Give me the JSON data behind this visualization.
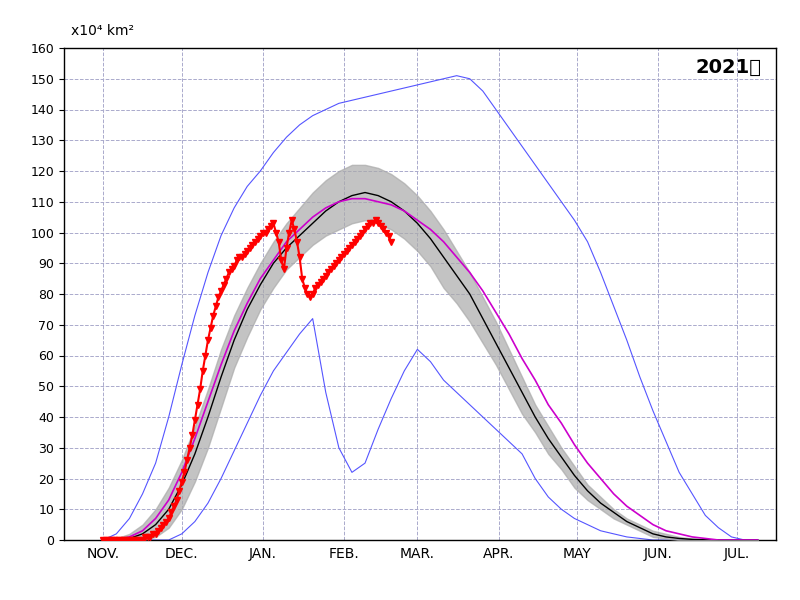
{
  "title": "2021年",
  "ylabel": "x10⁴ km²",
  "ylim": [
    0,
    160
  ],
  "yticks": [
    0,
    10,
    20,
    30,
    40,
    50,
    60,
    70,
    80,
    90,
    100,
    110,
    120,
    130,
    140,
    150,
    160
  ],
  "month_labels": [
    "NOV.",
    "DEC.",
    "JAN.",
    "FEB.",
    "MAR.",
    "APR.",
    "MAY",
    "JUN.",
    "JUL."
  ],
  "month_positions": [
    0,
    30,
    61,
    92,
    120,
    151,
    181,
    212,
    242
  ],
  "xlim": [
    -15,
    257
  ],
  "background_color": "#ffffff",
  "grid_color": "#aaaacc",
  "mean_color": "#000000",
  "envelope_color": "#888888",
  "max_color": "#5555ff",
  "purple_color": "#cc00cc",
  "red_color": "#ff0000",
  "red_data": {
    "x": [
      0,
      1,
      2,
      3,
      4,
      5,
      6,
      7,
      8,
      9,
      10,
      11,
      12,
      13,
      14,
      15,
      16,
      17,
      18,
      19,
      20,
      21,
      22,
      23,
      24,
      25,
      26,
      27,
      28,
      29,
      30,
      31,
      32,
      33,
      34,
      35,
      36,
      37,
      38,
      39,
      40,
      41,
      42,
      43,
      44,
      45,
      46,
      47,
      48,
      49,
      50,
      51,
      52,
      53,
      54,
      55,
      56,
      57,
      58,
      59,
      60,
      61,
      62,
      63,
      64,
      65,
      66,
      67,
      68,
      69,
      70,
      71,
      72,
      73,
      74,
      75,
      76,
      77,
      78,
      79,
      80,
      81,
      82,
      83,
      84,
      85,
      86,
      87,
      88,
      89,
      90,
      91,
      92,
      93,
      94,
      95,
      96,
      97,
      98,
      99,
      100,
      101,
      102,
      103,
      104,
      105,
      106,
      107,
      108,
      109,
      110
    ],
    "y_raw": [
      0,
      0,
      0,
      0,
      0,
      0,
      0,
      0,
      0,
      0,
      0,
      0,
      0,
      0,
      0,
      0,
      1,
      1,
      1,
      2,
      2,
      3,
      4,
      5,
      6,
      7,
      9,
      11,
      13,
      16,
      19,
      22,
      26,
      30,
      34,
      39,
      44,
      49,
      55,
      60,
      65,
      69,
      73,
      76,
      79,
      81,
      83,
      85,
      87,
      88,
      89,
      91,
      92,
      92,
      93,
      94,
      95,
      96,
      97,
      98,
      99,
      100,
      100,
      101,
      102,
      103,
      100,
      97,
      91,
      88,
      95,
      100,
      104,
      101,
      97,
      92,
      85,
      82,
      80,
      79,
      80,
      82,
      83,
      84,
      85,
      86,
      87,
      88,
      89,
      90,
      91,
      92,
      93,
      94,
      95,
      96,
      97,
      98,
      99,
      100,
      101,
      102,
      103,
      103,
      104,
      103,
      102,
      101,
      100,
      99,
      97
    ]
  },
  "mean_data": {
    "x": [
      0,
      5,
      10,
      15,
      20,
      25,
      30,
      35,
      40,
      45,
      50,
      55,
      60,
      65,
      70,
      75,
      80,
      85,
      90,
      95,
      100,
      105,
      110,
      115,
      120,
      125,
      130,
      135,
      140,
      145,
      150,
      155,
      160,
      165,
      170,
      175,
      180,
      185,
      190,
      195,
      200,
      205,
      210,
      215,
      220,
      225,
      230,
      235,
      240,
      245,
      250
    ],
    "y": [
      0,
      0,
      0.5,
      2,
      5,
      10,
      18,
      28,
      40,
      53,
      65,
      75,
      83,
      90,
      95,
      99,
      103,
      107,
      110,
      112,
      113,
      112,
      110,
      107,
      103,
      98,
      92,
      86,
      80,
      72,
      64,
      56,
      48,
      40,
      33,
      27,
      21,
      16,
      12,
      9,
      6,
      4,
      2,
      1,
      0.5,
      0.2,
      0.1,
      0,
      0,
      0,
      0
    ]
  },
  "stddev_upper": {
    "x": [
      0,
      5,
      10,
      15,
      20,
      25,
      30,
      35,
      40,
      45,
      50,
      55,
      60,
      65,
      70,
      75,
      80,
      85,
      90,
      95,
      100,
      105,
      110,
      115,
      120,
      125,
      130,
      135,
      140,
      145,
      150,
      155,
      160,
      165,
      170,
      175,
      180,
      185,
      190,
      195,
      200,
      205,
      210,
      215,
      220,
      225,
      230,
      235,
      240,
      245,
      250
    ],
    "y": [
      0,
      0.5,
      2,
      5,
      10,
      17,
      26,
      37,
      49,
      62,
      73,
      82,
      90,
      97,
      103,
      108,
      113,
      117,
      120,
      122,
      122,
      121,
      119,
      116,
      112,
      107,
      101,
      94,
      87,
      79,
      71,
      62,
      53,
      44,
      37,
      30,
      24,
      18,
      14,
      10,
      7,
      5,
      3,
      2,
      1,
      0.5,
      0.2,
      0,
      0,
      0,
      0
    ]
  },
  "stddev_lower": {
    "x": [
      0,
      5,
      10,
      15,
      20,
      25,
      30,
      35,
      40,
      45,
      50,
      55,
      60,
      65,
      70,
      75,
      80,
      85,
      90,
      95,
      100,
      105,
      110,
      115,
      120,
      125,
      130,
      135,
      140,
      145,
      150,
      155,
      160,
      165,
      170,
      175,
      180,
      185,
      190,
      195,
      200,
      205,
      210,
      215,
      220,
      225,
      230,
      235,
      240,
      245,
      250
    ],
    "y": [
      0,
      0,
      0,
      0,
      1,
      4,
      10,
      19,
      30,
      43,
      56,
      66,
      75,
      82,
      88,
      92,
      96,
      99,
      101,
      103,
      104,
      103,
      101,
      98,
      94,
      89,
      82,
      77,
      71,
      64,
      57,
      49,
      41,
      35,
      28,
      23,
      17,
      13,
      10,
      7,
      5,
      3,
      1,
      0.5,
      0,
      0,
      0,
      0,
      0,
      0,
      0
    ]
  },
  "max_data": {
    "x": [
      0,
      5,
      10,
      15,
      20,
      25,
      30,
      35,
      40,
      45,
      50,
      55,
      60,
      65,
      70,
      75,
      80,
      85,
      90,
      95,
      100,
      105,
      110,
      115,
      120,
      125,
      130,
      135,
      140,
      145,
      150,
      155,
      160,
      165,
      170,
      175,
      180,
      185,
      190,
      195,
      200,
      205,
      210,
      215,
      220,
      225,
      230,
      235,
      240,
      245,
      250
    ],
    "y": [
      0,
      2,
      7,
      15,
      25,
      40,
      57,
      73,
      87,
      99,
      108,
      115,
      120,
      126,
      131,
      135,
      138,
      140,
      142,
      143,
      144,
      145,
      146,
      147,
      148,
      149,
      150,
      151,
      150,
      146,
      140,
      134,
      128,
      122,
      116,
      110,
      104,
      97,
      87,
      76,
      65,
      53,
      42,
      32,
      22,
      15,
      8,
      4,
      1,
      0,
      0
    ]
  },
  "min_data": {
    "x": [
      0,
      5,
      10,
      15,
      20,
      25,
      30,
      35,
      40,
      45,
      50,
      55,
      60,
      65,
      70,
      75,
      80,
      85,
      90,
      95,
      100,
      105,
      110,
      115,
      120,
      125,
      130,
      135,
      140,
      145,
      150,
      155,
      160,
      165,
      170,
      175,
      180,
      185,
      190,
      195,
      200,
      205,
      210,
      215,
      220,
      225,
      230,
      235,
      240,
      245,
      250
    ],
    "y": [
      0,
      0,
      0,
      0,
      0,
      0,
      2,
      6,
      12,
      20,
      29,
      38,
      47,
      55,
      61,
      67,
      72,
      48,
      30,
      22,
      25,
      36,
      46,
      55,
      62,
      58,
      52,
      48,
      44,
      40,
      36,
      32,
      28,
      20,
      14,
      10,
      7,
      5,
      3,
      2,
      1,
      0.5,
      0,
      0,
      0,
      0,
      0,
      0,
      0,
      0,
      0
    ]
  },
  "purple_data": {
    "x": [
      0,
      5,
      10,
      15,
      20,
      25,
      30,
      35,
      40,
      45,
      50,
      55,
      60,
      65,
      70,
      75,
      80,
      85,
      90,
      95,
      100,
      105,
      110,
      115,
      120,
      125,
      130,
      135,
      140,
      145,
      150,
      155,
      160,
      165,
      170,
      175,
      180,
      185,
      190,
      195,
      200,
      205,
      210,
      215,
      220,
      225,
      230,
      235,
      240,
      245,
      250
    ],
    "y": [
      0,
      0,
      1,
      3,
      7,
      13,
      22,
      33,
      45,
      57,
      68,
      77,
      85,
      91,
      97,
      101,
      105,
      108,
      110,
      111,
      111,
      110,
      109,
      107,
      104,
      101,
      97,
      92,
      87,
      81,
      74,
      67,
      59,
      52,
      44,
      38,
      31,
      25,
      20,
      15,
      11,
      8,
      5,
      3,
      2,
      1,
      0.5,
      0,
      0,
      0,
      0
    ]
  }
}
